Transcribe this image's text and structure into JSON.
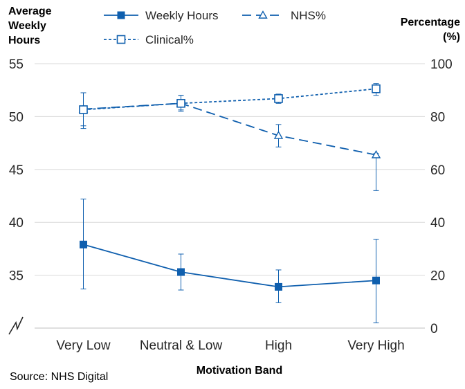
{
  "chart_data": {
    "type": "line",
    "x": [
      "Very Low",
      "Neutral & Low",
      "High",
      "Very High"
    ],
    "xlabel": "Motivation Band",
    "ylabel_left": [
      "Average",
      "Weekly",
      "Hours"
    ],
    "ylabel_right": [
      "Percentage",
      "(%)"
    ],
    "source": "Source: NHS Digital",
    "axis_break_left": true,
    "ylim_left": [
      30,
      55
    ],
    "yticks_left": [
      "35",
      "40",
      "45",
      "50",
      "55"
    ],
    "ylim_right": [
      0,
      100
    ],
    "yticks_right": [
      "0",
      "20",
      "40",
      "60",
      "80",
      "100"
    ],
    "grid": "horizontal",
    "legend_position": "top",
    "series": [
      {
        "name": "Weekly Hours",
        "axis": "left",
        "marker": "filled-square",
        "line": "solid",
        "color": "#0f5fae",
        "values": [
          37.9,
          35.3,
          33.9,
          34.5
        ],
        "error_low": [
          33.7,
          33.6,
          32.4,
          30.5
        ],
        "error_high": [
          42.2,
          37.0,
          35.5,
          38.4
        ]
      },
      {
        "name": "NHS%",
        "axis": "right",
        "marker": "open-triangle",
        "line": "long-dash",
        "color": "#0f5fae",
        "values": [
          82.8,
          85.0,
          72.8,
          65.5
        ],
        "error_low": [
          75.5,
          82.0,
          68.5,
          52.0
        ],
        "error_high": [
          89.0,
          88.0,
          77.0,
          66.0
        ]
      },
      {
        "name": "Clinical%",
        "axis": "right",
        "marker": "open-square",
        "line": "short-dash",
        "color": "#0f5fae",
        "values": [
          82.6,
          85.0,
          86.8,
          90.5
        ],
        "error_low": [
          76.5,
          82.5,
          85.0,
          88.0
        ],
        "error_high": [
          89.0,
          88.0,
          88.5,
          92.5
        ]
      }
    ]
  }
}
